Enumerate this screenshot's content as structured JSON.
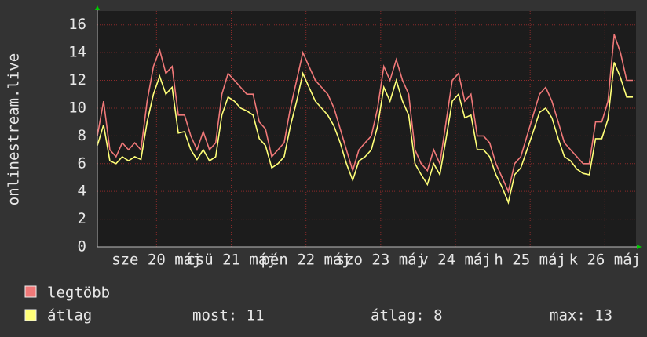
{
  "chart_data": {
    "type": "line",
    "y_label": "onlinestream.live",
    "x": [
      0,
      2,
      4,
      6,
      8,
      10,
      12,
      14,
      16,
      18,
      20,
      22,
      24,
      26,
      28,
      30,
      32,
      34,
      36,
      38,
      40,
      42,
      44,
      46,
      48,
      50,
      52,
      54,
      56,
      58,
      60,
      62,
      64,
      66,
      68,
      70,
      72,
      74,
      76,
      78,
      80,
      82,
      84,
      86,
      88,
      90,
      92,
      94,
      96,
      98,
      100,
      102,
      104,
      106,
      108,
      110,
      112,
      114,
      116,
      118,
      120,
      122,
      124,
      126,
      128,
      130,
      132,
      134,
      136,
      138,
      140,
      142,
      144,
      146,
      148,
      150,
      152,
      154,
      156,
      158,
      160,
      162,
      164,
      166,
      168,
      170,
      172
    ],
    "series": [
      {
        "name": "legtöbb",
        "color": "#f07878",
        "values": [
          8,
          10.5,
          7,
          6.5,
          7.5,
          7,
          7.5,
          7,
          10.5,
          13,
          14.2,
          12.5,
          13,
          9.5,
          9.5,
          8,
          7,
          8.3,
          7,
          7.5,
          11,
          12.5,
          12,
          11.5,
          11,
          11,
          9,
          8.5,
          6.5,
          7,
          7.5,
          10,
          12,
          14,
          13,
          12,
          11.5,
          11,
          10,
          8.5,
          7,
          5.5,
          7,
          7.5,
          8,
          10,
          13,
          12,
          13.5,
          12,
          11,
          7,
          6,
          5.5,
          7,
          6,
          9,
          12,
          12.5,
          10.5,
          11,
          8,
          8,
          7.5,
          6,
          5,
          4,
          6,
          6.5,
          8,
          9.5,
          11,
          11.5,
          10.5,
          9,
          7.5,
          7,
          6.5,
          6,
          6,
          9,
          9,
          10.5,
          15.3,
          14,
          12,
          12
        ]
      },
      {
        "name": "átlag",
        "color": "#ffff78",
        "values": [
          7.3,
          8.8,
          6.2,
          6,
          6.5,
          6.2,
          6.5,
          6.3,
          9,
          11,
          12.3,
          11,
          11.5,
          8.2,
          8.3,
          7,
          6.3,
          7,
          6.2,
          6.5,
          9.5,
          10.8,
          10.5,
          10,
          9.8,
          9.5,
          7.8,
          7.3,
          5.7,
          6,
          6.5,
          8.7,
          10.5,
          12.5,
          11.5,
          10.5,
          10,
          9.5,
          8.7,
          7.5,
          6,
          4.8,
          6.2,
          6.5,
          7,
          8.7,
          11.5,
          10.5,
          12,
          10.5,
          9.5,
          6,
          5.2,
          4.5,
          6,
          5.2,
          7.8,
          10.5,
          11,
          9.3,
          9.5,
          7,
          7,
          6.5,
          5.2,
          4.3,
          3.2,
          5.2,
          5.7,
          7,
          8.3,
          9.7,
          10,
          9.3,
          7.8,
          6.5,
          6.2,
          5.6,
          5.3,
          5.2,
          7.8,
          7.8,
          9.2,
          13.3,
          12.2,
          10.8,
          10.8
        ]
      }
    ],
    "xlim": [
      0,
      173
    ],
    "xticks": [
      {
        "value": 19,
        "label": "sze 20 máj"
      },
      {
        "value": 43,
        "label": "csü 21 máj"
      },
      {
        "value": 67,
        "label": "pén 22 máj"
      },
      {
        "value": 91,
        "label": "szo 23 máj"
      },
      {
        "value": 115,
        "label": "v 24 máj"
      },
      {
        "value": 139,
        "label": "h 25 máj"
      },
      {
        "value": 163,
        "label": "k 26 máj"
      }
    ],
    "ylim": [
      0,
      17
    ],
    "yticks": [
      0,
      2,
      4,
      6,
      8,
      10,
      12,
      14,
      16
    ],
    "grid": true,
    "stats": [
      "most: 11",
      "átlag: 8",
      "max: 13"
    ]
  }
}
